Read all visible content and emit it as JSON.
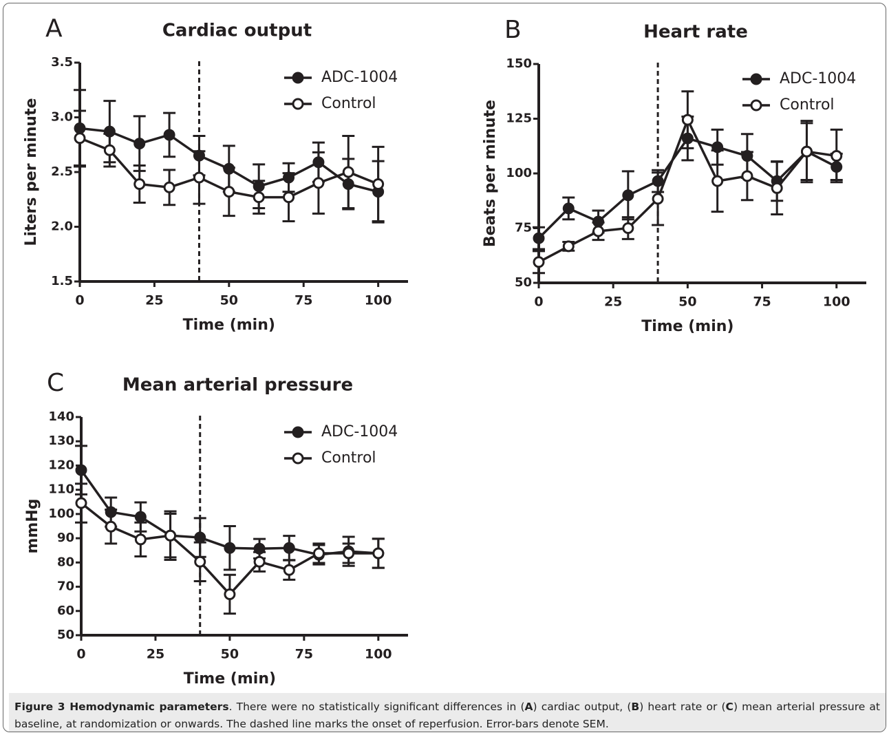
{
  "chart_data": [
    {
      "type": "line",
      "panel": "A",
      "title": "Cardiac output",
      "xlabel": "Time (min)",
      "ylabel": "Liters per minute",
      "x": [
        0,
        10,
        20,
        30,
        40,
        50,
        60,
        70,
        80,
        90,
        100
      ],
      "series": [
        {
          "name": "ADC-1004",
          "color": "#231f20",
          "marker_fill": "#231f20",
          "values": [
            2.9,
            2.87,
            2.76,
            2.84,
            2.65,
            2.53,
            2.37,
            2.45,
            2.59,
            2.39,
            2.32
          ],
          "errors": [
            0.35,
            0.28,
            0.25,
            0.2,
            0.18,
            0.21,
            0.2,
            0.13,
            0.18,
            0.23,
            0.28
          ]
        },
        {
          "name": "Control",
          "color": "#231f20",
          "marker_fill": "#ffffff",
          "values": [
            2.81,
            2.7,
            2.39,
            2.36,
            2.45,
            2.32,
            2.27,
            2.27,
            2.4,
            2.5,
            2.39
          ],
          "errors": [
            0.25,
            0.15,
            0.17,
            0.16,
            0.24,
            0.22,
            0.15,
            0.22,
            0.28,
            0.33,
            0.34
          ]
        }
      ],
      "xlim": [
        0,
        110
      ],
      "ylim": [
        1.5,
        3.5
      ],
      "xticks": [
        0,
        25,
        50,
        75,
        100
      ],
      "yticks": [
        1.5,
        {
          "value": 2,
          "label": "2.0"
        },
        2.5,
        {
          "value": 3,
          "label": "3.0"
        },
        3.5
      ],
      "vline": 40,
      "grid": false,
      "legend": "upper right"
    },
    {
      "type": "line",
      "panel": "B",
      "title": "Heart rate",
      "xlabel": "Time (min)",
      "ylabel": "Beats per minute",
      "x": [
        0,
        10,
        20,
        30,
        40,
        50,
        60,
        70,
        80,
        90,
        100
      ],
      "series": [
        {
          "name": "ADC-1004",
          "color": "#231f20",
          "marker_fill": "#231f20",
          "values": [
            70.4,
            84,
            78,
            90,
            96.5,
            116,
            112,
            108,
            96.5,
            110,
            103
          ],
          "errors": [
            5,
            5,
            5,
            11,
            5,
            10,
            8,
            10,
            9,
            13,
            6
          ]
        },
        {
          "name": "Control",
          "color": "#231f20",
          "marker_fill": "#ffffff",
          "values": [
            59.5,
            66.7,
            73.6,
            75,
            88.4,
            124.5,
            96.5,
            98.8,
            93.3,
            110,
            108
          ],
          "errors": [
            5,
            2,
            4,
            5,
            12,
            13,
            14,
            11,
            12,
            14,
            12
          ]
        }
      ],
      "xlim": [
        0,
        110
      ],
      "ylim": [
        50,
        150
      ],
      "xticks": [
        0,
        25,
        50,
        75,
        100
      ],
      "yticks": [
        50,
        75,
        100,
        125,
        150
      ],
      "vline": 40,
      "grid": false,
      "legend": "upper right"
    },
    {
      "type": "line",
      "panel": "C",
      "title": "Mean arterial pressure",
      "xlabel": "Time (min)",
      "ylabel": "mmHg",
      "x": [
        0,
        10,
        20,
        30,
        40,
        50,
        60,
        70,
        80,
        90,
        100
      ],
      "series": [
        {
          "name": "ADC-1004",
          "color": "#231f20",
          "marker_fill": "#231f20",
          "values": [
            118.1,
            100.8,
            98.8,
            91.1,
            90.3,
            86,
            85.7,
            86,
            83.2,
            84.6,
            83.8
          ],
          "errors": [
            10,
            6,
            6,
            9,
            8,
            9,
            4,
            5,
            4,
            6,
            6
          ]
        },
        {
          "name": "Control",
          "color": "#231f20",
          "marker_fill": "#ffffff",
          "values": [
            104.5,
            94.8,
            89.5,
            91.1,
            80.3,
            66.9,
            80.3,
            76.9,
            83.8,
            83.8,
            83.8
          ],
          "errors": [
            8,
            7,
            7,
            10,
            8,
            8,
            4,
            4,
            4,
            4,
            6
          ]
        }
      ],
      "xlim": [
        0,
        110
      ],
      "ylim": [
        50,
        140
      ],
      "xticks": [
        0,
        25,
        50,
        75,
        100
      ],
      "yticks": [
        50,
        60,
        70,
        80,
        90,
        100,
        110,
        120,
        130,
        140
      ],
      "vline": 40,
      "grid": false,
      "legend": "upper right"
    }
  ],
  "caption": {
    "runs": [
      {
        "text": "Figure 3 Hemodynamic parameters",
        "bold": true
      },
      {
        "text": ". There were no statistically significant differences in (",
        "bold": false
      },
      {
        "text": "A",
        "bold": true
      },
      {
        "text": ") cardiac output, (",
        "bold": false
      },
      {
        "text": "B",
        "bold": true
      },
      {
        "text": ") heart rate or (",
        "bold": false
      },
      {
        "text": "C",
        "bold": true
      },
      {
        "text": ") mean arterial pressure at baseline, at randomization or onwards. The dashed line marks the onset of reperfusion. Error-bars denote SEM.",
        "bold": false
      }
    ]
  }
}
